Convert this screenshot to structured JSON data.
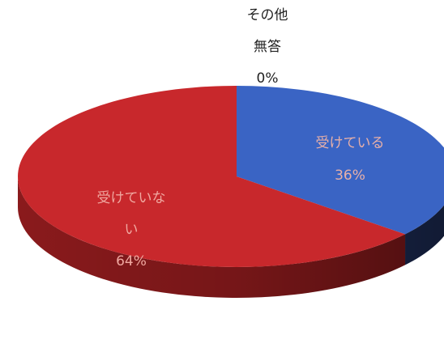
{
  "chart_data": {
    "type": "pie",
    "style": "3d",
    "slices": [
      {
        "label_lines": [
          "受けている"
        ],
        "percent_label": "36%",
        "value": 36,
        "color": "#3a64c4",
        "side_color": "#1f2f5c",
        "label_color": "#e8b0a8"
      },
      {
        "label_lines": [
          "受けていな",
          "い"
        ],
        "percent_label": "64%",
        "value": 64,
        "color": "#c8282c",
        "side_color": "#8a1a1c",
        "label_color": "#f0a8a0"
      },
      {
        "label_lines": [
          "その他",
          "無答"
        ],
        "percent_label": "0%",
        "value": 0,
        "color": "#9aa0a6",
        "side_color": "#5f6368",
        "label_color": "#222222"
      }
    ]
  }
}
